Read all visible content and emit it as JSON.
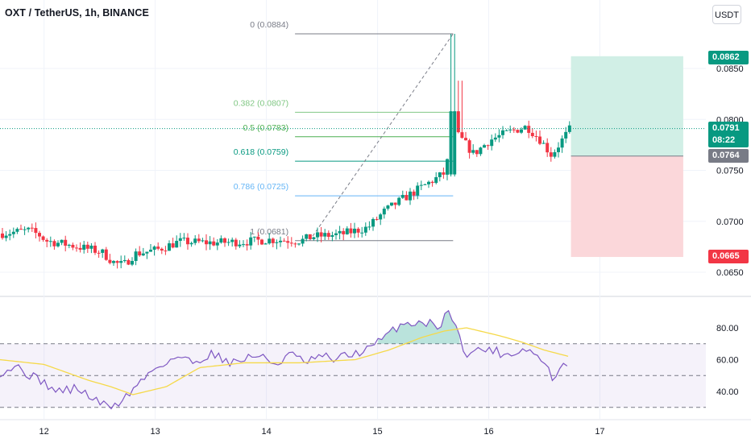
{
  "header": {
    "title": "OXT / TetherUS, 1h, BINANCE",
    "currency_button": "USDT"
  },
  "colors": {
    "up": "#089981",
    "down": "#f23645",
    "rsi_line": "#7e57c2",
    "rsi_ma": "#f5d949",
    "fib_0": "#787b86",
    "fib_382": "#81c784",
    "fib_5": "#4caf50",
    "fib_618": "#089981",
    "fib_786": "#64b5f6",
    "fib_1": "#787b86",
    "target_zone": "#d1efe6",
    "stop_zone": "#fbd7da"
  },
  "badges": {
    "target": "0.0862",
    "last_price": "0.0791",
    "countdown": "08:22",
    "entry": "0.0764",
    "stop": "0.0665"
  },
  "chart_data": [
    {
      "type": "candlestick",
      "title": "OXT / TetherUS, 1h, BINANCE",
      "ylim": [
        0.0632,
        0.0898
      ],
      "y_ticks": [
        "0.0850",
        "0.0800",
        "0.0750",
        "0.0700",
        "0.0650"
      ],
      "x_ticks": [
        "12",
        "13",
        "14",
        "15",
        "16",
        "17"
      ],
      "x_range_days": [
        11.6,
        17.95
      ],
      "close_anchors": [
        [
          11.6,
          0.0688
        ],
        [
          11.85,
          0.0691
        ],
        [
          11.95,
          0.0686
        ],
        [
          12.0,
          0.0681
        ],
        [
          12.25,
          0.0676
        ],
        [
          12.5,
          0.067
        ],
        [
          12.62,
          0.0659
        ],
        [
          12.7,
          0.0657
        ],
        [
          12.8,
          0.0668
        ],
        [
          13.0,
          0.0672
        ],
        [
          13.2,
          0.068
        ],
        [
          13.5,
          0.0679
        ],
        [
          13.8,
          0.068
        ],
        [
          14.0,
          0.0682
        ],
        [
          14.3,
          0.0681
        ],
        [
          14.4,
          0.0685
        ],
        [
          14.65,
          0.0687
        ],
        [
          14.9,
          0.0694
        ],
        [
          15.05,
          0.071
        ],
        [
          15.2,
          0.0721
        ],
        [
          15.45,
          0.0738
        ],
        [
          15.6,
          0.0748
        ],
        [
          15.65,
          0.079
        ],
        [
          15.73,
          0.0782
        ],
        [
          15.85,
          0.0766
        ],
        [
          16.0,
          0.078
        ],
        [
          16.2,
          0.0789
        ],
        [
          16.33,
          0.0793
        ],
        [
          16.45,
          0.078
        ],
        [
          16.55,
          0.0765
        ],
        [
          16.72,
          0.0791
        ]
      ],
      "spike": {
        "day": 15.67,
        "high": 0.0884,
        "note": "wick to Fib 0 level"
      },
      "last_price": 0.0791
    },
    {
      "type": "fib_retracement",
      "levels": [
        {
          "label": "0 (0.0884)",
          "value": 0.0884
        },
        {
          "label": "0.382 (0.0807)",
          "value": 0.0807
        },
        {
          "label": "0.5 (0.0783)",
          "value": 0.0783
        },
        {
          "label": "0.618 (0.0759)",
          "value": 0.0759
        },
        {
          "label": "0.786 (0.0725)",
          "value": 0.0725
        },
        {
          "label": "1 (0.0681)",
          "value": 0.0681
        }
      ],
      "start_day": 14.33,
      "end_day": 15.68
    },
    {
      "type": "long_position",
      "entry": 0.0764,
      "target": 0.0862,
      "stop": 0.0665,
      "start_day": 16.74,
      "end_day": 17.75
    },
    {
      "type": "line",
      "name": "RSI",
      "ylim": [
        28,
        98
      ],
      "y_ticks": [
        "80.00",
        "60.00",
        "40.00"
      ],
      "bands": [
        70,
        50,
        30
      ],
      "anchors": [
        [
          11.6,
          52
        ],
        [
          11.75,
          56
        ],
        [
          11.9,
          49
        ],
        [
          12.0,
          46
        ],
        [
          12.1,
          40
        ],
        [
          12.3,
          42
        ],
        [
          12.45,
          35
        ],
        [
          12.58,
          30
        ],
        [
          12.7,
          34
        ],
        [
          12.85,
          45
        ],
        [
          13.0,
          55
        ],
        [
          13.2,
          62
        ],
        [
          13.35,
          58
        ],
        [
          13.5,
          64
        ],
        [
          13.7,
          58
        ],
        [
          13.9,
          63
        ],
        [
          14.1,
          57
        ],
        [
          14.2,
          64
        ],
        [
          14.35,
          58
        ],
        [
          14.5,
          62
        ],
        [
          14.6,
          60
        ],
        [
          14.8,
          64
        ],
        [
          14.9,
          66
        ],
        [
          15.05,
          73
        ],
        [
          15.2,
          82
        ],
        [
          15.4,
          84
        ],
        [
          15.55,
          81
        ],
        [
          15.65,
          92
        ],
        [
          15.72,
          76
        ],
        [
          15.8,
          64
        ],
        [
          16.0,
          67
        ],
        [
          16.15,
          63
        ],
        [
          16.35,
          67
        ],
        [
          16.5,
          58
        ],
        [
          16.58,
          48
        ],
        [
          16.72,
          59
        ]
      ],
      "ma_anchors": [
        [
          11.6,
          60
        ],
        [
          12.0,
          57
        ],
        [
          12.4,
          47
        ],
        [
          12.6,
          43
        ],
        [
          12.8,
          38
        ],
        [
          13.1,
          43
        ],
        [
          13.4,
          55
        ],
        [
          13.8,
          58
        ],
        [
          14.3,
          58
        ],
        [
          14.8,
          60
        ],
        [
          15.1,
          66
        ],
        [
          15.4,
          74
        ],
        [
          15.6,
          78
        ],
        [
          15.8,
          80
        ],
        [
          16.1,
          75
        ],
        [
          16.3,
          71
        ],
        [
          16.5,
          66
        ],
        [
          16.72,
          62
        ]
      ]
    }
  ]
}
